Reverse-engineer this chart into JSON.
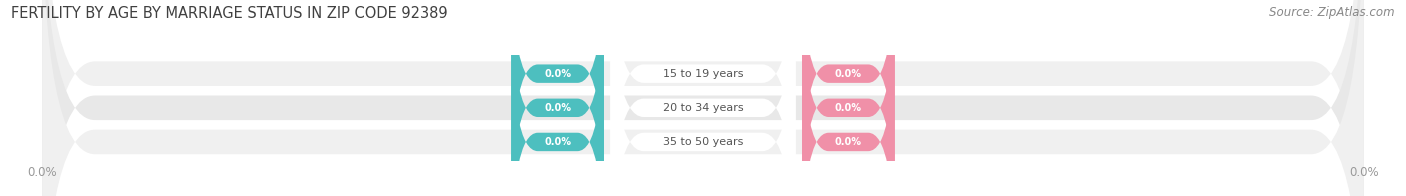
{
  "title": "FERTILITY BY AGE BY MARRIAGE STATUS IN ZIP CODE 92389",
  "source": "Source: ZipAtlas.com",
  "categories": [
    "15 to 19 years",
    "20 to 34 years",
    "35 to 50 years"
  ],
  "married_values": [
    0.0,
    0.0,
    0.0
  ],
  "unmarried_values": [
    0.0,
    0.0,
    0.0
  ],
  "married_color": "#4DBFBF",
  "unmarried_color": "#F090A8",
  "row_bg_color_odd": "#F0F0F0",
  "row_bg_color_even": "#E8E8E8",
  "center_pill_color": "#FFFFFF",
  "title_color": "#404040",
  "category_label_color": "#555555",
  "axis_label_color": "#999999",
  "source_color": "#888888",
  "background_color": "#FFFFFF",
  "xlim_left": -100,
  "xlim_right": 100,
  "figsize": [
    14.06,
    1.96
  ],
  "dpi": 100
}
